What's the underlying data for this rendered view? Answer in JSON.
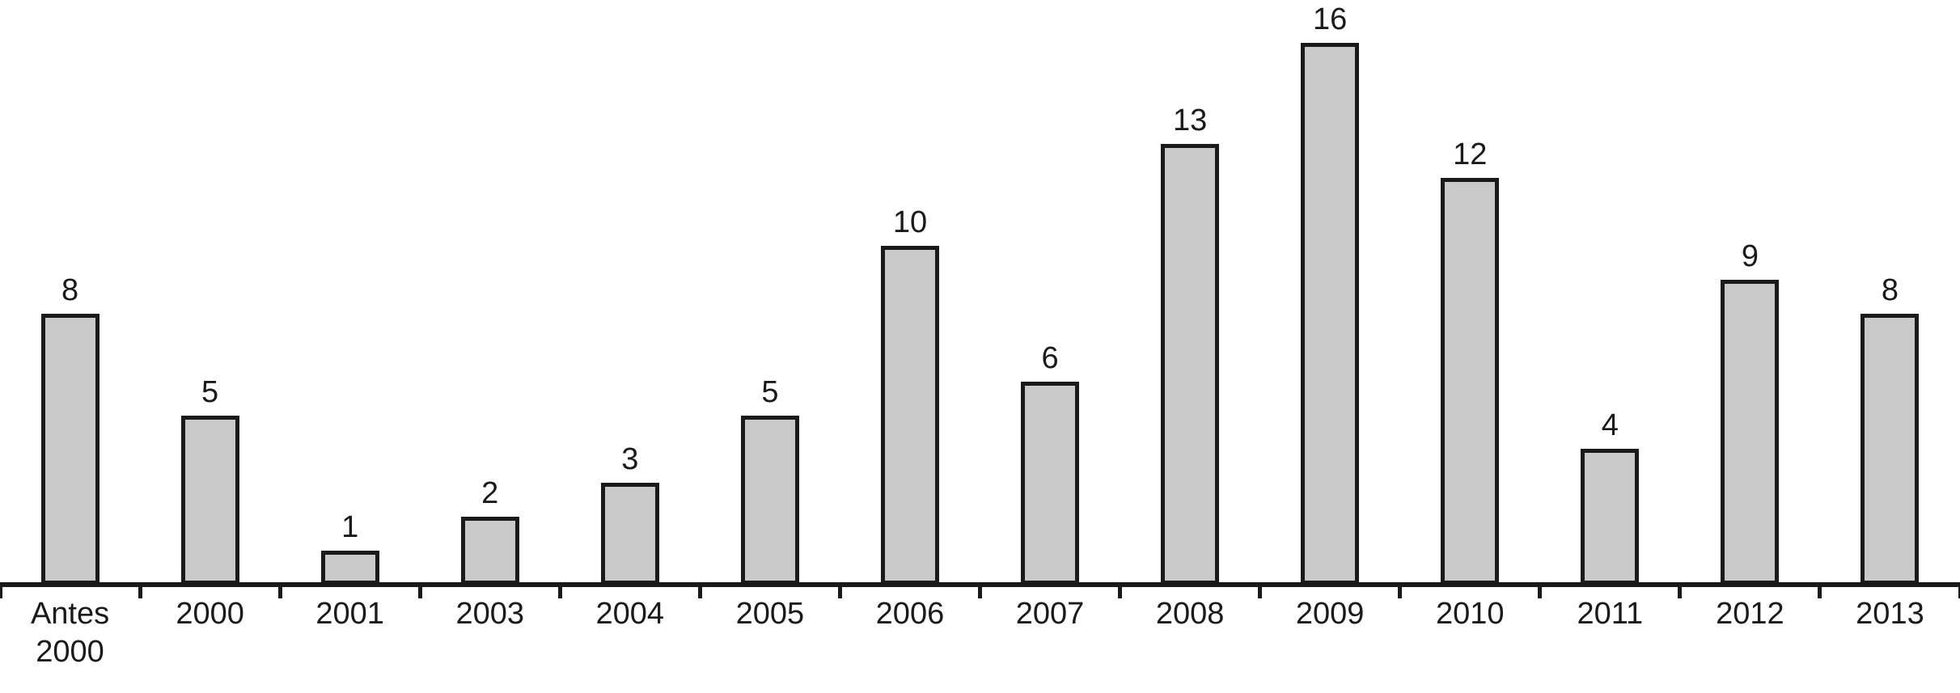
{
  "chart_data": {
    "type": "bar",
    "categories": [
      "Antes\n2000",
      "2000",
      "2001",
      "2003",
      "2004",
      "2005",
      "2006",
      "2007",
      "2008",
      "2009",
      "2010",
      "2011",
      "2012",
      "2013"
    ],
    "values": [
      8,
      5,
      1,
      2,
      3,
      5,
      10,
      6,
      13,
      16,
      12,
      4,
      9,
      8
    ],
    "title": "",
    "xlabel": "",
    "ylabel": "",
    "ylim": [
      0,
      17
    ],
    "grid": false,
    "legend_position": "none",
    "data_labels": true,
    "axis_ticks": "category-boundaries",
    "colors": {
      "bar_fill": "#c9c9c9",
      "bar_border": "#1a1a1a",
      "axis": "#1a1a1a",
      "text": "#1a1a1a",
      "background": "#ffffff"
    }
  }
}
